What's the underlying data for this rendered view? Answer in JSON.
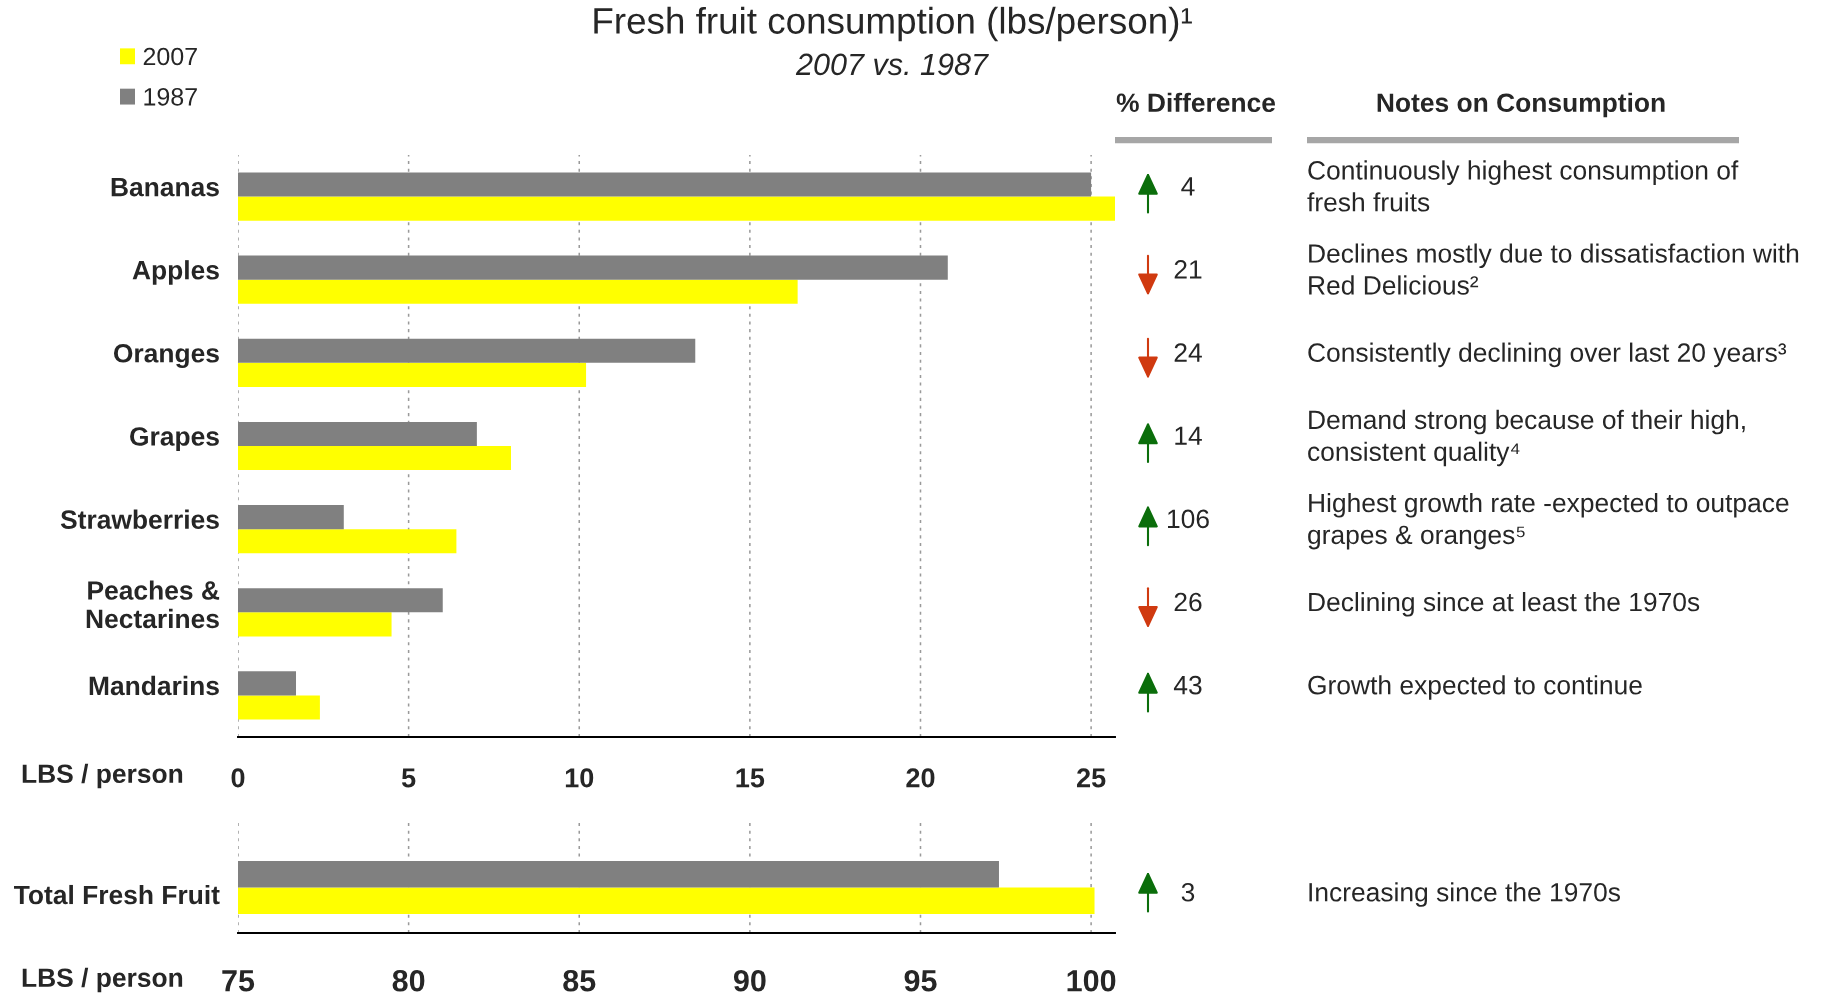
{
  "chart_data": [
    {
      "type": "bar",
      "title": "Fresh fruit consumption (lbs/person)¹",
      "subtitle": "2007 vs. 1987",
      "orientation": "horizontal",
      "categories": [
        "Bananas",
        "Apples",
        "Oranges",
        "Grapes",
        "Strawberries",
        "Peaches &\nNectarines",
        "Mandarins"
      ],
      "series": [
        {
          "name": "2007",
          "color": "#ffff00",
          "values": [
            25.7,
            16.4,
            10.2,
            8.0,
            6.4,
            4.5,
            2.4
          ]
        },
        {
          "name": "1987",
          "color": "#808080",
          "values": [
            25.0,
            20.8,
            13.4,
            7.0,
            3.1,
            6.0,
            1.7
          ]
        }
      ],
      "xlabel": "LBS / person",
      "xlim": [
        0,
        25.7
      ],
      "xticks": [
        0,
        5,
        10,
        15,
        20,
        25
      ],
      "grid": "x",
      "legend": "top left"
    },
    {
      "type": "bar",
      "orientation": "horizontal",
      "categories": [
        "Total Fresh Fruit"
      ],
      "series": [
        {
          "color": "#ffff00",
          "values": [
            100.1
          ]
        },
        {
          "color": "#808080",
          "values": [
            97.3
          ]
        }
      ],
      "xlabel": "LBS / person",
      "xlim": [
        75,
        100.7
      ],
      "xticks": [
        75,
        80,
        85,
        90,
        95,
        100
      ],
      "grid": "x"
    },
    {
      "type": "other",
      "title": "% Difference",
      "annotations": [
        "4",
        "21",
        "24",
        "14",
        "106",
        "26",
        "43",
        "3"
      ]
    },
    {
      "type": "other",
      "title": "Notes on Consumption",
      "annotations": [
        "Continuously highest consumption of\nfresh fruits",
        "Declines mostly due to dissatisfaction with\nRed Delicious²",
        "Consistently declining over last 20 years³",
        "Demand strong because of their high,\nconsistent quality⁴",
        "Highest growth rate -expected to outpace\ngrapes & oranges⁵",
        "Declining since at least the 1970s",
        "Growth expected to continue",
        "Increasing since the 1970s"
      ]
    }
  ]
}
